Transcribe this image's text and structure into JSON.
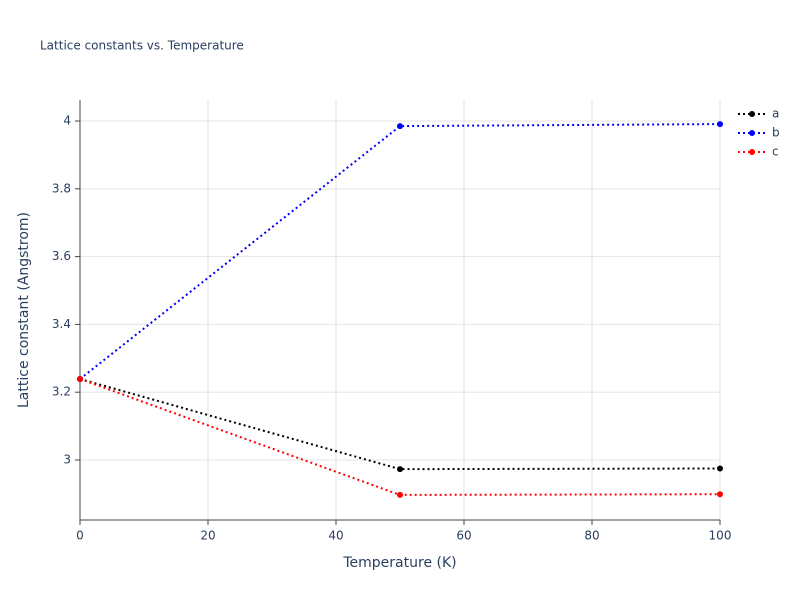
{
  "chart_data": {
    "type": "line",
    "title": "Lattice constants vs. Temperature",
    "x_label": "Temperature (K)",
    "y_label": "Lattice constant (Angstrom)",
    "x": [
      0,
      50,
      100
    ],
    "series": [
      {
        "name": "a",
        "color": "#000000",
        "values": [
          3.239,
          2.973,
          2.975
        ]
      },
      {
        "name": "b",
        "color": "#0000ff",
        "values": [
          3.239,
          3.985,
          3.991
        ]
      },
      {
        "name": "c",
        "color": "#ff0000",
        "values": [
          3.239,
          2.897,
          2.899
        ]
      }
    ],
    "xlim": [
      0,
      100
    ],
    "xticks": [
      0,
      20,
      40,
      60,
      80,
      100
    ],
    "ylim": [
      2.823,
      4.062
    ],
    "yticks": [
      3,
      3.2,
      3.4,
      3.6,
      3.8,
      4
    ],
    "grid": true,
    "legend": "top-right",
    "line_style": "dotted"
  }
}
